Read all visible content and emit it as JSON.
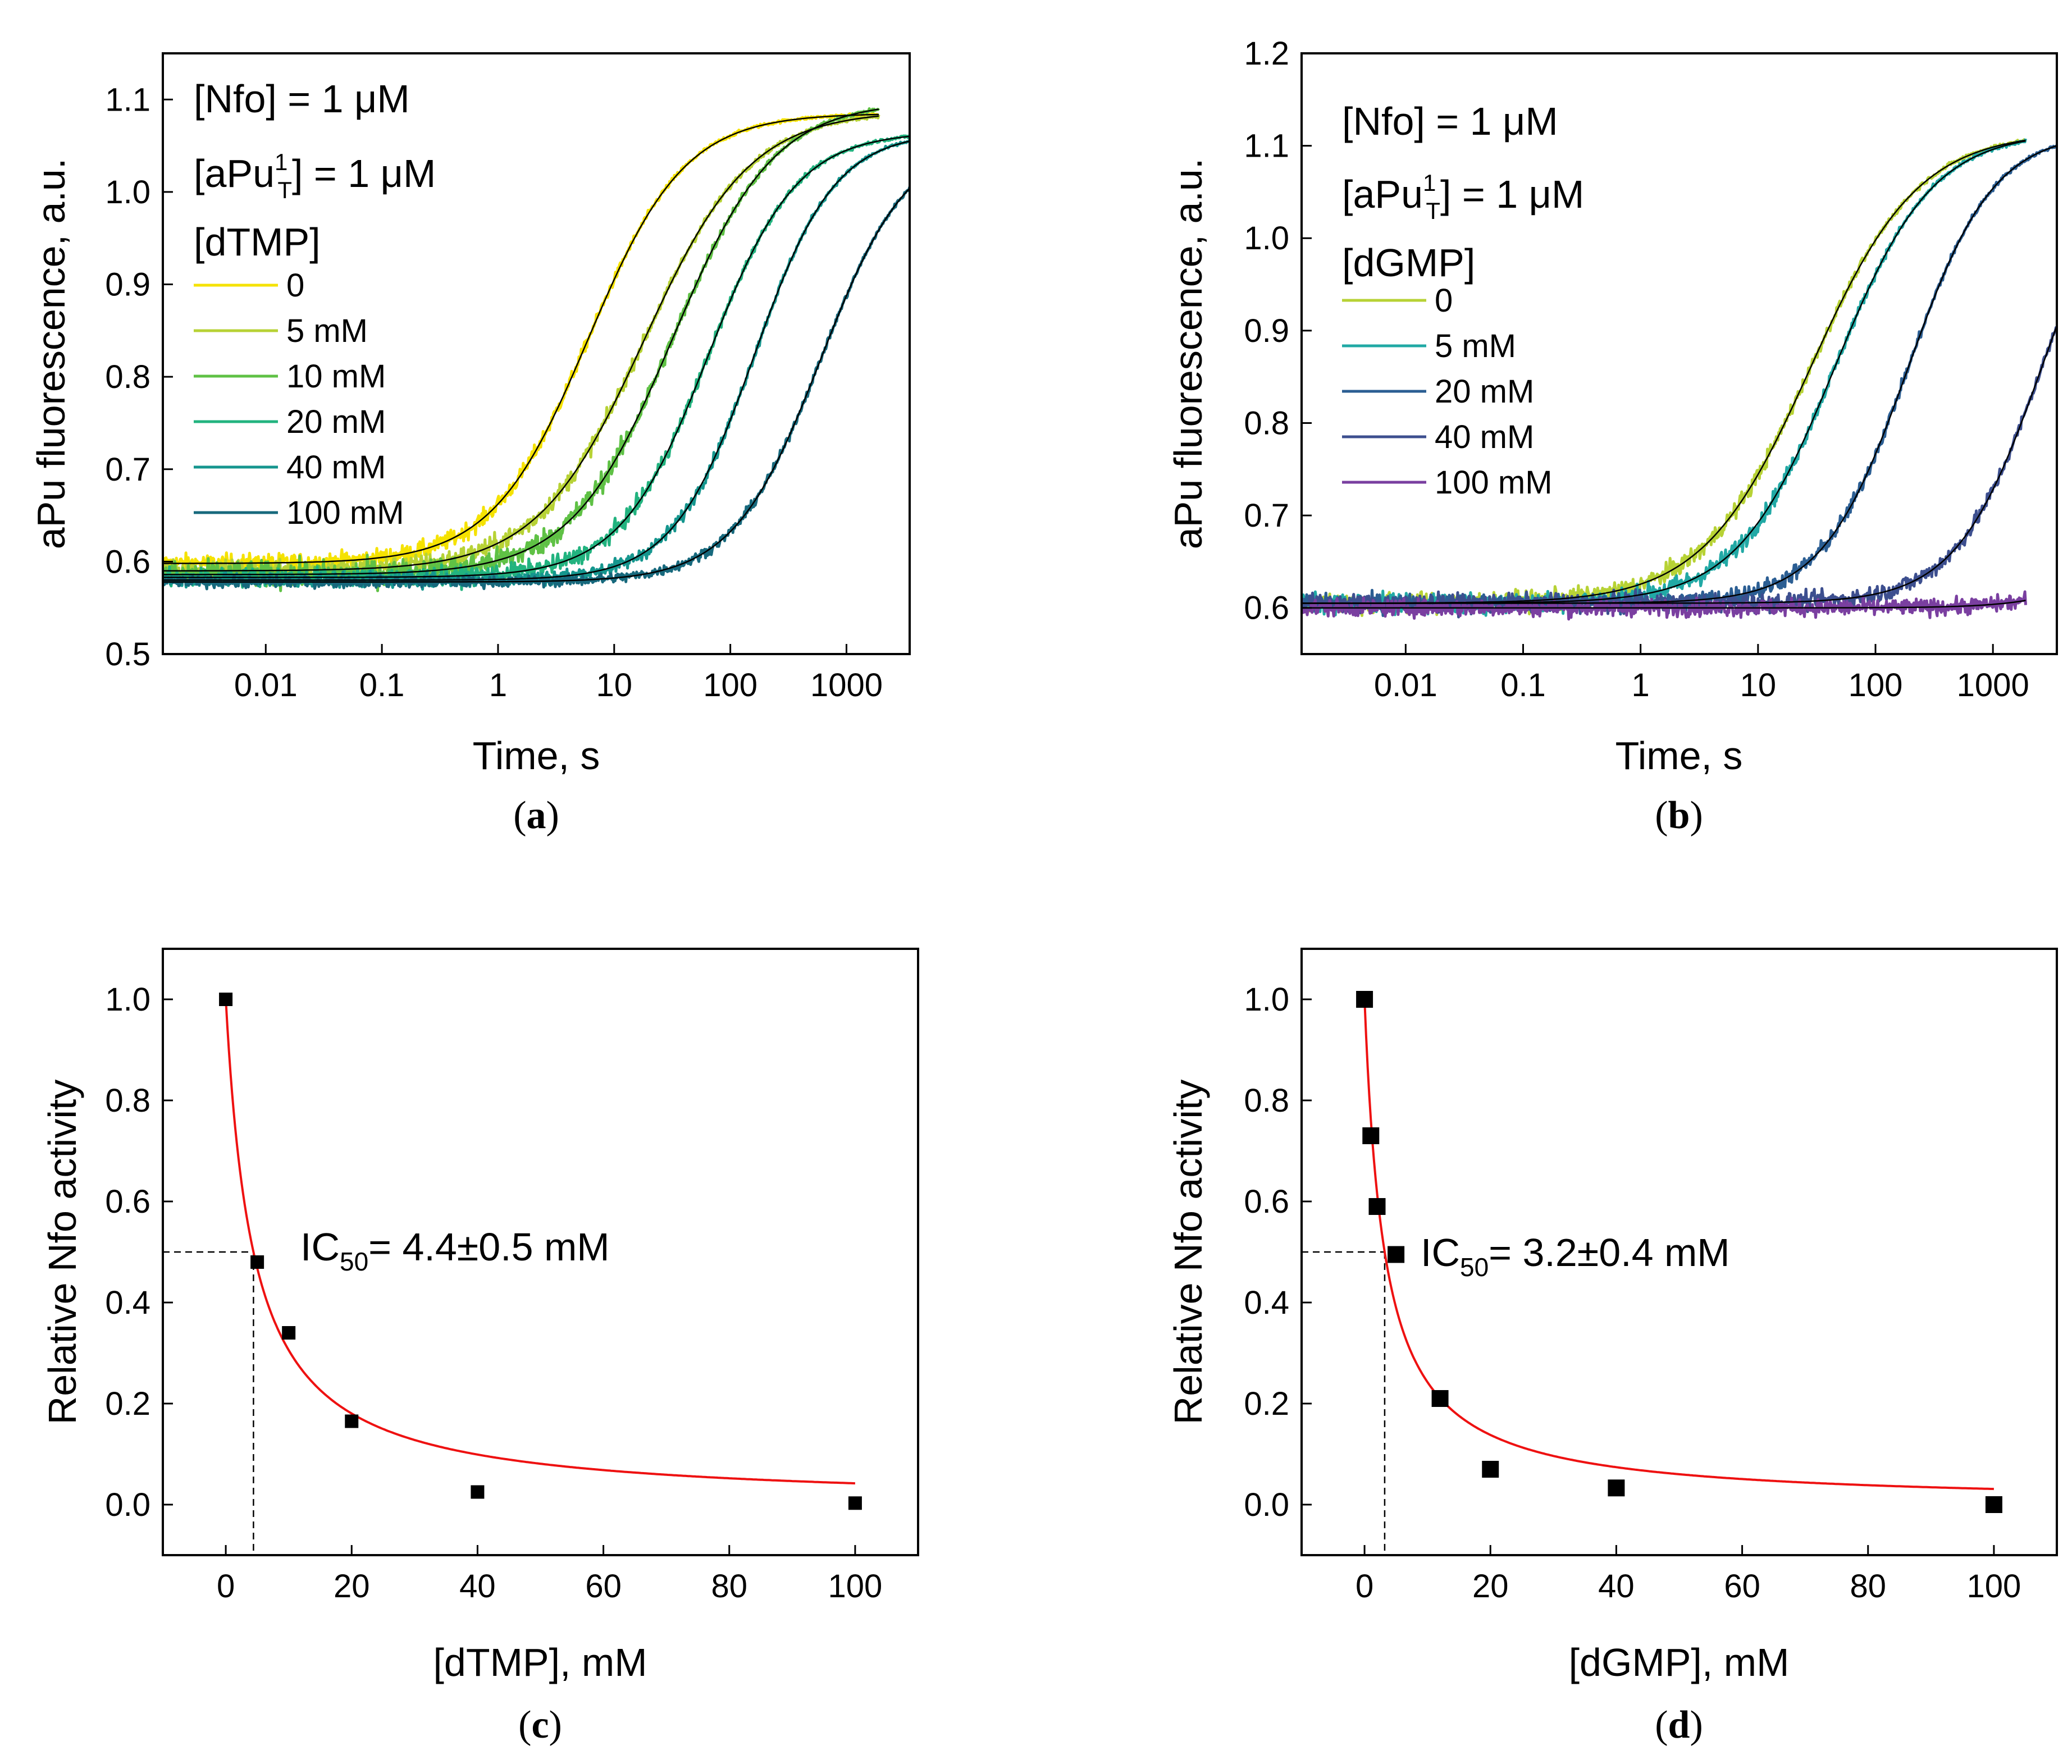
{
  "colors": {
    "dTMP_0": "#f5e200",
    "dTMP_5": "#b7d235",
    "dTMP_10": "#5fc145",
    "dTMP_20": "#22b37f",
    "dTMP_40": "#15968e",
    "dTMP_100": "#17697d",
    "dGMP_0": "#b7d235",
    "dGMP_5": "#21a9a5",
    "dGMP_20": "#2b5e93",
    "dGMP_40": "#3d4f8f",
    "dGMP_100": "#7a3fa0",
    "fit": "#000000",
    "ic50_fit": "#ee1111"
  },
  "chart_data": [
    {
      "panel": "a",
      "type": "line",
      "xscale": "log",
      "xlabel": "Time, s",
      "ylabel": "aPu fluorescence, a.u.",
      "xlim": [
        0.0013,
        3500
      ],
      "ylim": [
        0.5,
        1.15
      ],
      "xticks": [
        0.01,
        0.1,
        1,
        10,
        100,
        1000
      ],
      "xtick_labels": [
        "0.01",
        "0.1",
        "1",
        "10",
        "100",
        "1000"
      ],
      "yticks": [
        0.5,
        0.6,
        0.7,
        0.8,
        0.9,
        1.0,
        1.1
      ],
      "ytick_labels": [
        "0.5",
        "0.6",
        "0.7",
        "0.8",
        "0.9",
        "1.0",
        "1.1"
      ],
      "annotations": {
        "line1": "[Nfo] = 1 μM",
        "line2_pre": "[aPu",
        "line2_sup": "1",
        "line2_sub": "T",
        "line2_post": "] = 1 μM",
        "legend_title": "[dTMP]"
      },
      "panel_label": "a",
      "series": [
        {
          "name": "0",
          "color_key": "dTMP_0",
          "baseline": 0.598,
          "plateau": 1.085,
          "t_half": 6,
          "hill": 1.05,
          "t_end": 1900,
          "noise": 0.008
        },
        {
          "name": "5 mM",
          "color_key": "dTMP_5",
          "baseline": 0.59,
          "plateau": 1.088,
          "t_half": 18,
          "hill": 0.95,
          "t_end": 1900,
          "noise": 0.009
        },
        {
          "name": "10 mM",
          "color_key": "dTMP_10",
          "baseline": 0.586,
          "plateau": 1.098,
          "t_half": 32,
          "hill": 1.0,
          "t_end": 1900,
          "noise": 0.012
        },
        {
          "name": "20 mM",
          "color_key": "dTMP_20",
          "baseline": 0.583,
          "plateau": 1.065,
          "t_half": 65,
          "hill": 1.15,
          "t_end": 3500,
          "noise": 0.008
        },
        {
          "name": "40 mM",
          "color_key": "dTMP_40",
          "baseline": 0.58,
          "plateau": 1.065,
          "t_half": 160,
          "hill": 1.25,
          "t_end": 3500,
          "noise": 0.006
        },
        {
          "name": "100 mM",
          "color_key": "dTMP_100",
          "baseline": 0.578,
          "plateau": 1.06,
          "t_half": 600,
          "hill": 1.15,
          "t_end": 3500,
          "noise": 0.004
        }
      ]
    },
    {
      "panel": "b",
      "type": "line",
      "xscale": "log",
      "xlabel": "Time, s",
      "ylabel": "aPu fluorescence, a.u.",
      "xlim": [
        0.0013,
        3500
      ],
      "ylim": [
        0.55,
        1.2
      ],
      "xticks": [
        0.01,
        0.1,
        1,
        10,
        100,
        1000
      ],
      "xtick_labels": [
        "0.01",
        "0.1",
        "1",
        "10",
        "100",
        "1000"
      ],
      "yticks": [
        0.6,
        0.7,
        0.8,
        0.9,
        1.0,
        1.1,
        1.2
      ],
      "ytick_labels": [
        "0.6",
        "0.7",
        "0.8",
        "0.9",
        "1.0",
        "1.1",
        "1.2"
      ],
      "annotations": {
        "line1": "[Nfo] = 1 μM",
        "line2_pre": "[aPu",
        "line2_sup": "1",
        "line2_sub": "T",
        "line2_post": "] = 1 μM",
        "legend_title": "[dGMP]"
      },
      "panel_label": "b",
      "series": [
        {
          "name": "0",
          "color_key": "dGMP_0",
          "baseline": 0.605,
          "plateau": 1.115,
          "t_half": 28,
          "hill": 0.95,
          "t_end": 1900,
          "noise": 0.009
        },
        {
          "name": "5 mM",
          "color_key": "dGMP_5",
          "baseline": 0.605,
          "plateau": 1.115,
          "t_half": 45,
          "hill": 1.05,
          "t_end": 1900,
          "noise": 0.009
        },
        {
          "name": "20 mM",
          "color_key": "dGMP_20",
          "baseline": 0.605,
          "plateau": 1.115,
          "t_half": 190,
          "hill": 1.2,
          "t_end": 3500,
          "noise": 0.008
        },
        {
          "name": "40 mM",
          "color_key": "dGMP_40",
          "baseline": 0.605,
          "plateau": 1.115,
          "t_half": 2600,
          "hill": 1.2,
          "t_end": 3500,
          "noise": 0.008
        },
        {
          "name": "100 mM",
          "color_key": "dGMP_100",
          "baseline": 0.6,
          "plateau": 1.115,
          "t_half": 60000,
          "hill": 1.2,
          "t_end": 1900,
          "noise": 0.007
        }
      ]
    },
    {
      "panel": "c",
      "type": "scatter",
      "xlabel": "[dTMP], mM",
      "ylabel": "Relative Nfo activity",
      "xlim": [
        -10,
        110
      ],
      "ylim": [
        -0.1,
        1.1
      ],
      "xticks": [
        0,
        20,
        40,
        60,
        80,
        100
      ],
      "xtick_labels": [
        "0",
        "20",
        "40",
        "60",
        "80",
        "100"
      ],
      "yticks": [
        0.0,
        0.2,
        0.4,
        0.6,
        0.8,
        1.0
      ],
      "ytick_labels": [
        "0.0",
        "0.2",
        "0.4",
        "0.6",
        "0.8",
        "1.0"
      ],
      "x": [
        0,
        5,
        10,
        20,
        40,
        100
      ],
      "y": [
        1.0,
        0.48,
        0.34,
        0.165,
        0.025,
        0.003
      ],
      "fit": {
        "model": "1/(1+x/IC50)",
        "ic50": 4.4
      },
      "annotation": {
        "pre": "IC",
        "sub": "50",
        "post": "= 4.4±0.5 mM"
      },
      "panel_label": "c"
    },
    {
      "panel": "d",
      "type": "scatter",
      "xlabel": "[dGMP], mM",
      "ylabel": "Relative Nfo activity",
      "xlim": [
        -10,
        110
      ],
      "ylim": [
        -0.1,
        1.1
      ],
      "xticks": [
        0,
        20,
        40,
        60,
        80,
        100
      ],
      "xtick_labels": [
        "0",
        "20",
        "40",
        "60",
        "80",
        "100"
      ],
      "yticks": [
        0.0,
        0.2,
        0.4,
        0.6,
        0.8,
        1.0
      ],
      "ytick_labels": [
        "0.0",
        "0.2",
        "0.4",
        "0.6",
        "0.8",
        "1.0"
      ],
      "x": [
        0,
        1,
        2,
        5,
        12,
        20,
        40,
        100
      ],
      "y": [
        1.0,
        0.73,
        0.59,
        0.495,
        0.21,
        0.07,
        0.033,
        0.0
      ],
      "fit": {
        "model": "1/(1+x/IC50)",
        "ic50": 3.2
      },
      "annotation": {
        "pre": "IC",
        "sub": "50",
        "post": "= 3.2±0.4 mM"
      },
      "panel_label": "d"
    }
  ]
}
